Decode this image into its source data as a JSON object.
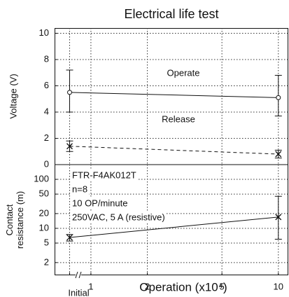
{
  "chart_data": [
    {
      "type": "line",
      "title": "Electrical life test",
      "ylabel": [
        "Voltage (V)"
      ],
      "xlim": [
        0.64,
        11.3
      ],
      "xscale": "log",
      "ylim": [
        0,
        10.4
      ],
      "yticks": [
        0,
        2,
        4,
        6,
        8,
        10
      ],
      "grid": true,
      "x": [
        0.77,
        10
      ],
      "series": [
        {
          "name": "Operate",
          "color": "#111111",
          "marker": "circle",
          "linestyle": "solid",
          "values": [
            5.5,
            5.1
          ],
          "low": [
            4.0,
            3.7
          ],
          "high": [
            7.2,
            6.8
          ]
        },
        {
          "name": "Release",
          "color": "#111111",
          "marker": "x",
          "linestyle": "dashed",
          "values": [
            1.4,
            0.8
          ],
          "low": [
            1.0,
            0.5
          ],
          "high": [
            1.8,
            1.1
          ]
        }
      ]
    },
    {
      "type": "line",
      "xlabel": "Operation (x10⁴)",
      "ylabel": [
        "Contact",
        "resistance (m)"
      ],
      "annotations": [
        "FTR-F4AK012T",
        "n=8",
        "10 OP/minute",
        "250VAC, 5 A (resistive)"
      ],
      "xlim": [
        0.64,
        11.3
      ],
      "xscale": "log",
      "xticks": [
        {
          "value": 0.77,
          "label": "Initial"
        },
        1,
        2,
        5,
        10
      ],
      "ylim": [
        1.1,
        200
      ],
      "yscale": "log",
      "yticks": [
        2,
        5,
        10,
        20,
        50,
        100
      ],
      "grid": true,
      "x": [
        0.77,
        10
      ],
      "series": [
        {
          "name": "Contact resistance",
          "color": "#111111",
          "marker": "x",
          "linestyle": "solid",
          "values": [
            6.5,
            17
          ],
          "low": [
            5.5,
            6
          ],
          "high": [
            7.5,
            45
          ]
        }
      ]
    }
  ]
}
